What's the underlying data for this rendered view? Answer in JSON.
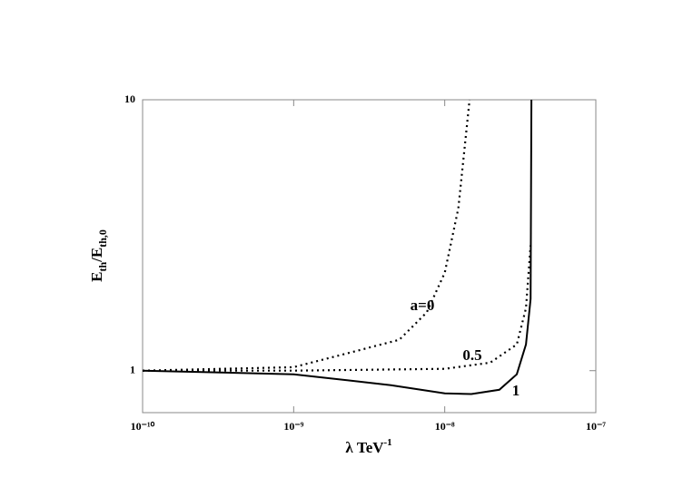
{
  "chart_data": {
    "type": "line",
    "xlabel": [
      "λ TeV",
      "-1"
    ],
    "ylabel": [
      "E",
      "th",
      "/E",
      "th,0"
    ],
    "xscale": "log",
    "yscale": "log",
    "xlim": [
      1e-10,
      1e-07
    ],
    "ylim": [
      0.7,
      10
    ],
    "xticks": [
      {
        "value": 1e-10,
        "label": "10⁻¹⁰"
      },
      {
        "value": 1e-09,
        "label": "10⁻⁹"
      },
      {
        "value": 1e-08,
        "label": "10⁻⁸"
      },
      {
        "value": 1e-07,
        "label": "10⁻⁷"
      }
    ],
    "yticks": [
      1,
      10
    ],
    "series": [
      {
        "name": "a=0",
        "color": "#000000",
        "dash": "dotted",
        "x": [
          1e-10,
          1e-09,
          5e-09,
          7.6e-09,
          1e-08,
          1.23e-08,
          1.42e-08,
          1.46e-08
        ],
        "values": [
          1,
          1.03,
          1.3,
          1.64,
          2.3,
          3.97,
          8.6,
          10
        ]
      },
      {
        "name": "0.5",
        "color": "#000000",
        "dash": "dotted",
        "x": [
          1e-10,
          1e-09,
          1e-08,
          2e-08,
          3e-08,
          3.45e-08,
          3.7e-08
        ],
        "values": [
          1,
          1.0,
          1.016,
          1.07,
          1.25,
          1.7,
          2.9
        ]
      },
      {
        "name": "1",
        "color": "#000000",
        "dash": "solid",
        "x": [
          1e-10,
          1e-09,
          4.4e-09,
          1e-08,
          1.5e-08,
          2.3e-08,
          3e-08,
          3.45e-08,
          3.7e-08,
          3.75e-08
        ],
        "values": [
          1,
          0.97,
          0.884,
          0.825,
          0.82,
          0.85,
          0.97,
          1.25,
          1.84,
          10
        ]
      }
    ]
  }
}
